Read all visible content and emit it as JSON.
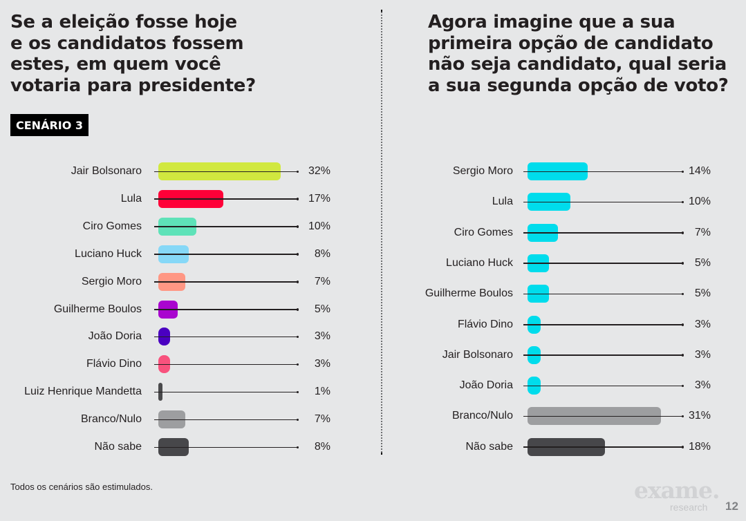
{
  "left": {
    "title": "Se a eleição fosse hoje\ne os candidatos fossem\nestes, em quem você\nvotaria para presidente?",
    "badge": "CENÁRIO 3"
  },
  "right": {
    "title": "Agora imagine que a sua\nprimeira opção de candidato\nnão seja candidato, qual seria\na sua segunda opção de voto?"
  },
  "footer": {
    "note": "Todos os cenários são estimulados.",
    "brand": "exame.",
    "brand_sub": "research",
    "page": "12"
  },
  "chart_data": [
    {
      "type": "bar",
      "orientation": "horizontal",
      "title": "Se a eleição fosse hoje e os candidatos fossem estes, em quem você votaria para presidente?",
      "subtitle": "CENÁRIO 3",
      "unit": "%",
      "categories": [
        "Jair Bolsonaro",
        "Lula",
        "Ciro Gomes",
        "Luciano Huck",
        "Sergio Moro",
        "Guilherme Boulos",
        "João Doria",
        "Flávio Dino",
        "Luiz Henrique Mandetta",
        "Branco/Nulo",
        "Não sabe"
      ],
      "values": [
        32,
        17,
        10,
        8,
        7,
        5,
        3,
        3,
        1,
        7,
        8
      ],
      "labels": [
        "32%",
        "17%",
        "10%",
        "8%",
        "7%",
        "5%",
        "3%",
        "3%",
        "1%",
        "7%",
        "8%"
      ],
      "colors": [
        "#d1e83f",
        "#ff0038",
        "#5ee2b8",
        "#86d8f7",
        "#ff9784",
        "#a905cf",
        "#4a00c1",
        "#f8527d",
        "#4a4a4c",
        "#9d9ea0",
        "#47474a"
      ],
      "xlim": [
        0,
        34
      ],
      "grid": false,
      "legend": "none"
    },
    {
      "type": "bar",
      "orientation": "horizontal",
      "title": "Agora imagine que a sua primeira opção de candidato não seja candidato, qual seria a sua segunda opção de voto?",
      "unit": "%",
      "categories": [
        "Sergio Moro",
        "Lula",
        "Ciro Gomes",
        "Luciano Huck",
        "Guilherme Boulos",
        "Flávio Dino",
        "Jair Bolsonaro",
        "João Doria",
        "Branco/Nulo",
        "Não sabe"
      ],
      "values": [
        14,
        10,
        7,
        5,
        5,
        3,
        3,
        3,
        31,
        18
      ],
      "labels": [
        "14%",
        "10%",
        "7%",
        "5%",
        "5%",
        "3%",
        "3%",
        "3%",
        "31%",
        "18%"
      ],
      "colors": [
        "#00dcec",
        "#00dcec",
        "#00dcec",
        "#00dcec",
        "#00dcec",
        "#00dcec",
        "#00dcec",
        "#00dcec",
        "#9d9ea0",
        "#47474a"
      ],
      "xlim": [
        0,
        34
      ],
      "grid": false,
      "legend": "none"
    }
  ]
}
